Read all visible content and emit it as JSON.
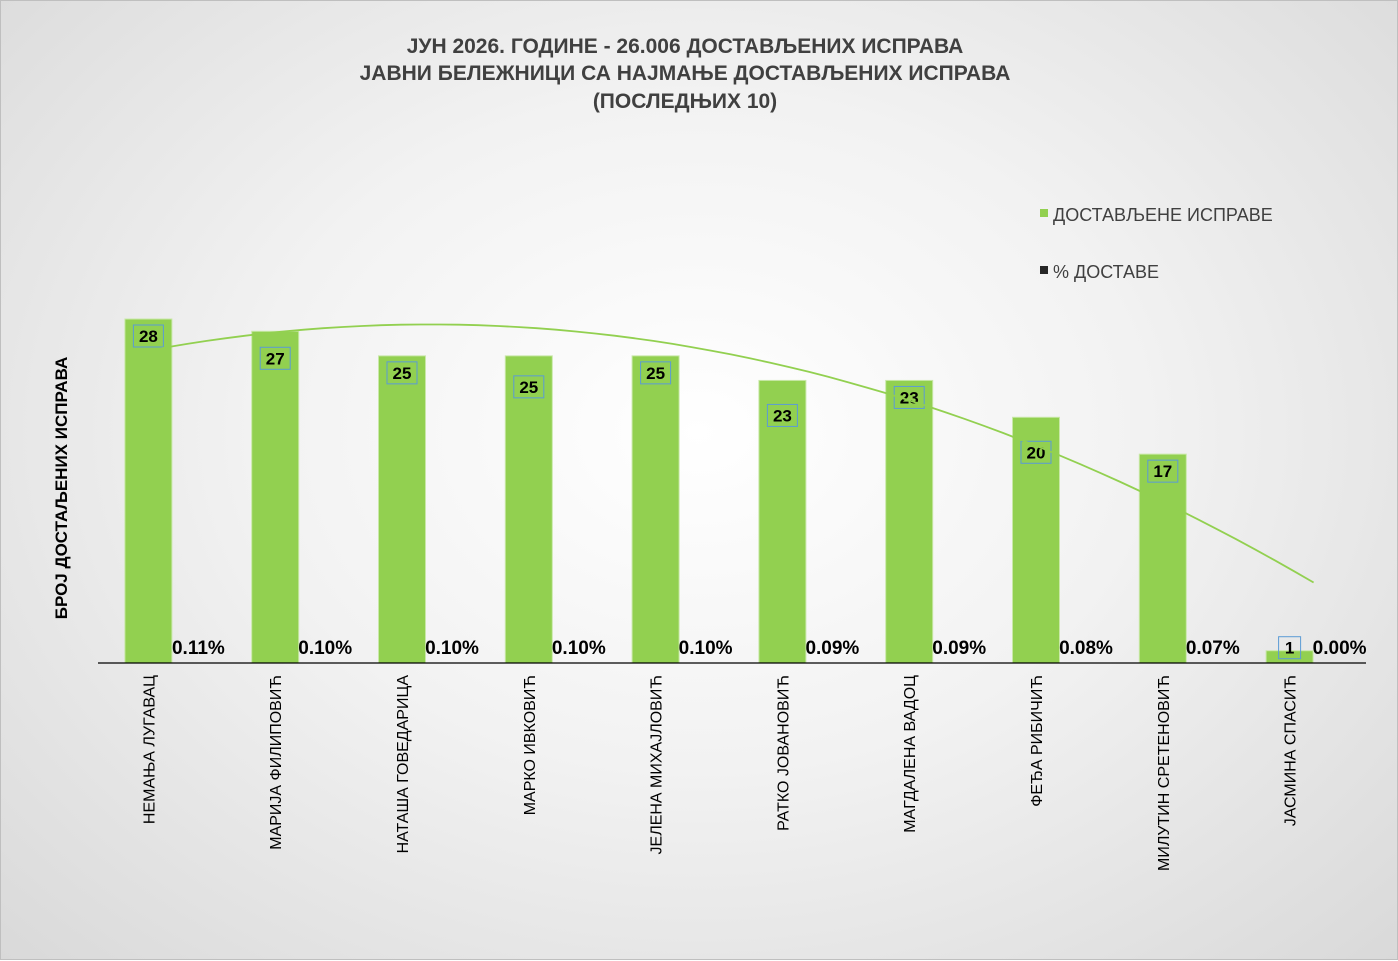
{
  "chart_data": {
    "type": "bar",
    "title_lines": [
      "ЈУН 2026. ГОДИНЕ - 26.006 ДОСТАВЉЕНИХ ИСПРАВА",
      "ЈАВНИ БЕЛЕЖНИЦИ СА НАЈМАЊЕ ДОСТАВЉЕНИХ ИСПРАВА",
      "(ПОСЛЕДЊИХ 10)"
    ],
    "ylabel": "БРОЈ ДОСТАЉЕНИХ ИСПРАВА",
    "categories": [
      "НЕМАЊА ЛУГАВАЦ",
      "МАРИЈА ФИЛИПОВИЋ",
      "НАТАША ГОВЕДАРИЦА",
      "МАРКО ИВКОВИЋ",
      "ЈЕЛЕНА МИХАЈЛОВИЋ",
      "РАТКО ЈОВАНОВИЋ",
      "МАГДАЛЕНА ВАДОЦ",
      "ФЕЂА РИБИЧИЋ",
      "МИЛУТИН СРЕТЕНОВИЋ",
      "ЈАСМИНА СПАСИЋ"
    ],
    "series": [
      {
        "name": "ДОСТАВЉЕНЕ ИСПРАВЕ",
        "color": "#92d050",
        "values": [
          28,
          27,
          25,
          25,
          25,
          23,
          23,
          20,
          17,
          1
        ],
        "labels": [
          "28",
          "27",
          "25",
          "25",
          "25",
          "23",
          "23",
          "20",
          "17",
          "1"
        ]
      },
      {
        "name": "% ДОСТАВЕ",
        "color": "#262626",
        "values": [
          0.11,
          0.1,
          0.1,
          0.1,
          0.1,
          0.09,
          0.09,
          0.08,
          0.07,
          0.0
        ],
        "labels": [
          "0.11%",
          "0.10%",
          "0.10%",
          "0.10%",
          "0.10%",
          "0.09%",
          "0.09%",
          "0.08%",
          "0.07%",
          "0.00%"
        ]
      }
    ],
    "ylim": [
      0,
      28
    ],
    "trendline": "polynomial",
    "trendline_color": "#92d050",
    "grid": false,
    "legend_position": "top-right"
  }
}
